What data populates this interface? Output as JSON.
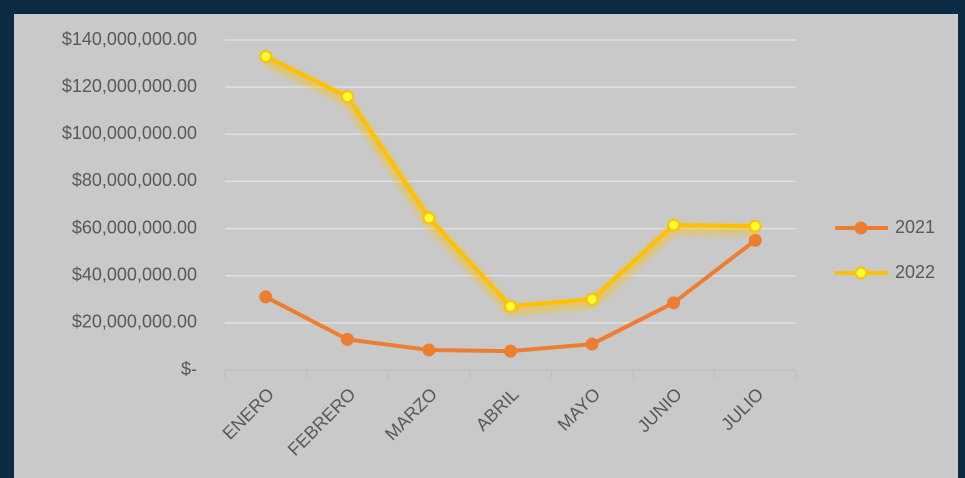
{
  "chart_data": {
    "type": "line",
    "categories": [
      "ENERO",
      "FEBRERO",
      "MARZO",
      "ABRIL",
      "MAYO",
      "JUNIO",
      "JULIO"
    ],
    "series": [
      {
        "name": "2021",
        "color": "#ed7d31",
        "values": [
          31000000,
          13000000,
          8500000,
          8000000,
          11000000,
          28500000,
          55000000
        ]
      },
      {
        "name": "2022",
        "color": "#ffc000",
        "values": [
          133000000,
          116000000,
          64500000,
          27000000,
          30000000,
          61500000,
          61000000
        ]
      }
    ],
    "ylim": [
      0,
      140000000
    ],
    "yticks": [
      {
        "value": 0,
        "label": "$-"
      },
      {
        "value": 20000000,
        "label": "$20,000,000.00"
      },
      {
        "value": 40000000,
        "label": "$40,000,000.00"
      },
      {
        "value": 60000000,
        "label": "$60,000,000.00"
      },
      {
        "value": 80000000,
        "label": "$80,000,000.00"
      },
      {
        "value": 100000000,
        "label": "$100,000,000.00"
      },
      {
        "value": 120000000,
        "label": "$120,000,000.00"
      },
      {
        "value": 140000000,
        "label": "$140,000,000.00"
      }
    ],
    "grid": true,
    "legend": "right"
  }
}
